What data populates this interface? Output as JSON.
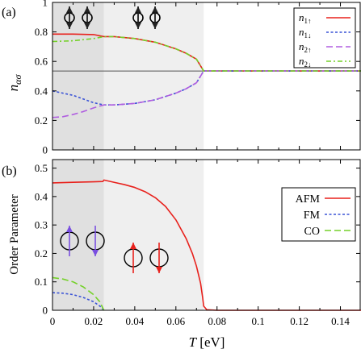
{
  "figure": {
    "xaxis_label_var": "T",
    "xaxis_label_unit": "[eV]",
    "x_ticks": [
      "0",
      "0.02",
      "0.04",
      "0.06",
      "0.08",
      "0.1",
      "0.12",
      "0.14"
    ]
  },
  "colors": {
    "red": "#e8211c",
    "blue": "#3a53d6",
    "purple": "#b05ee0",
    "green": "#75d12a",
    "shade_dark": "#e0e0e0",
    "shade_light": "#efefef",
    "hline": "#555555"
  },
  "chart_data": [
    {
      "type": "line",
      "panel_label": "(a)",
      "ylabel_base": "n",
      "ylabel_sub": "ασ",
      "xlim": [
        0,
        0.15
      ],
      "ylim": [
        0,
        1.0
      ],
      "y_ticks": [
        "0",
        "0.2",
        "0.4",
        "0.6",
        "0.8",
        "1"
      ],
      "shaded_regions": [
        {
          "x": [
            0,
            0.025
          ],
          "shade": "dark"
        },
        {
          "x": [
            0.025,
            0.0735
          ],
          "shade": "light"
        }
      ],
      "reference_line_y": 0.535,
      "legend_position": "top-right",
      "icons": [
        "up-down-spin-pair",
        "up-down-spin-pair"
      ],
      "series": [
        {
          "name": "n1↑",
          "name_base": "n",
          "name_sub": "1↑",
          "color_key": "red",
          "dash": "solid",
          "x": [
            0,
            0.01,
            0.02,
            0.025,
            0.03,
            0.04,
            0.05,
            0.06,
            0.065,
            0.07,
            0.0735,
            0.08,
            0.1,
            0.12,
            0.15
          ],
          "y": [
            0.785,
            0.785,
            0.782,
            0.768,
            0.768,
            0.755,
            0.73,
            0.685,
            0.655,
            0.615,
            0.535,
            0.535,
            0.535,
            0.535,
            0.535
          ]
        },
        {
          "name": "n1↓",
          "name_base": "n",
          "name_sub": "1↓",
          "color_key": "blue",
          "dash": "short",
          "x": [
            0,
            0.005,
            0.01,
            0.015,
            0.02,
            0.025,
            0.03,
            0.04,
            0.05,
            0.06,
            0.065,
            0.07,
            0.0735,
            0.08,
            0.1,
            0.12,
            0.15
          ],
          "y": [
            0.4,
            0.385,
            0.37,
            0.345,
            0.32,
            0.305,
            0.305,
            0.315,
            0.34,
            0.385,
            0.415,
            0.455,
            0.535,
            0.535,
            0.535,
            0.535,
            0.535
          ]
        },
        {
          "name": "n2↑",
          "name_base": "n",
          "name_sub": "2↑",
          "color_key": "purple",
          "dash": "long",
          "x": [
            0,
            0.005,
            0.01,
            0.015,
            0.02,
            0.025,
            0.03,
            0.04,
            0.05,
            0.06,
            0.065,
            0.07,
            0.0735,
            0.08,
            0.1,
            0.12,
            0.15
          ],
          "y": [
            0.22,
            0.225,
            0.24,
            0.26,
            0.285,
            0.305,
            0.305,
            0.315,
            0.34,
            0.385,
            0.415,
            0.455,
            0.535,
            0.535,
            0.535,
            0.535,
            0.535
          ]
        },
        {
          "name": "n2↓",
          "name_base": "n",
          "name_sub": "2↓",
          "color_key": "green",
          "dash": "dashdot",
          "x": [
            0,
            0.01,
            0.02,
            0.025,
            0.03,
            0.04,
            0.05,
            0.06,
            0.065,
            0.07,
            0.0735,
            0.08,
            0.1,
            0.12,
            0.15
          ],
          "y": [
            0.735,
            0.74,
            0.755,
            0.768,
            0.768,
            0.755,
            0.73,
            0.685,
            0.655,
            0.615,
            0.535,
            0.535,
            0.535,
            0.535,
            0.535
          ]
        }
      ]
    },
    {
      "type": "line",
      "panel_label": "(b)",
      "ylabel": "Order Parameter",
      "xlabel": "T [eV]",
      "xlim": [
        0,
        0.15
      ],
      "ylim": [
        0,
        0.53
      ],
      "y_ticks": [
        "0",
        "0.1",
        "0.2",
        "0.3",
        "0.4",
        "0.5"
      ],
      "shaded_regions": [
        {
          "x": [
            0,
            0.025
          ],
          "shade": "dark"
        },
        {
          "x": [
            0.025,
            0.0735
          ],
          "shade": "light"
        }
      ],
      "legend_position": "top-right",
      "icons": [
        "up-up-spin-pair",
        "up-down-spin-pair"
      ],
      "series": [
        {
          "name": "AFM",
          "color_key": "red",
          "dash": "solid",
          "x": [
            0,
            0.01,
            0.02,
            0.0245,
            0.025,
            0.03,
            0.035,
            0.04,
            0.045,
            0.05,
            0.055,
            0.06,
            0.065,
            0.068,
            0.07,
            0.072,
            0.073,
            0.0735,
            0.075,
            0.08,
            0.1,
            0.15
          ],
          "y": [
            0.448,
            0.45,
            0.452,
            0.453,
            0.458,
            0.45,
            0.442,
            0.432,
            0.417,
            0.396,
            0.365,
            0.318,
            0.252,
            0.2,
            0.155,
            0.095,
            0.045,
            0.015,
            0.002,
            0,
            0,
            0
          ]
        },
        {
          "name": "FM",
          "color_key": "blue",
          "dash": "short",
          "x": [
            0,
            0.005,
            0.01,
            0.015,
            0.02,
            0.023,
            0.025
          ],
          "y": [
            0.062,
            0.06,
            0.055,
            0.045,
            0.03,
            0.015,
            0
          ]
        },
        {
          "name": "CO",
          "color_key": "green",
          "dash": "long",
          "x": [
            0,
            0.005,
            0.01,
            0.015,
            0.02,
            0.023,
            0.025
          ],
          "y": [
            0.115,
            0.11,
            0.1,
            0.082,
            0.055,
            0.03,
            0
          ]
        }
      ]
    }
  ]
}
